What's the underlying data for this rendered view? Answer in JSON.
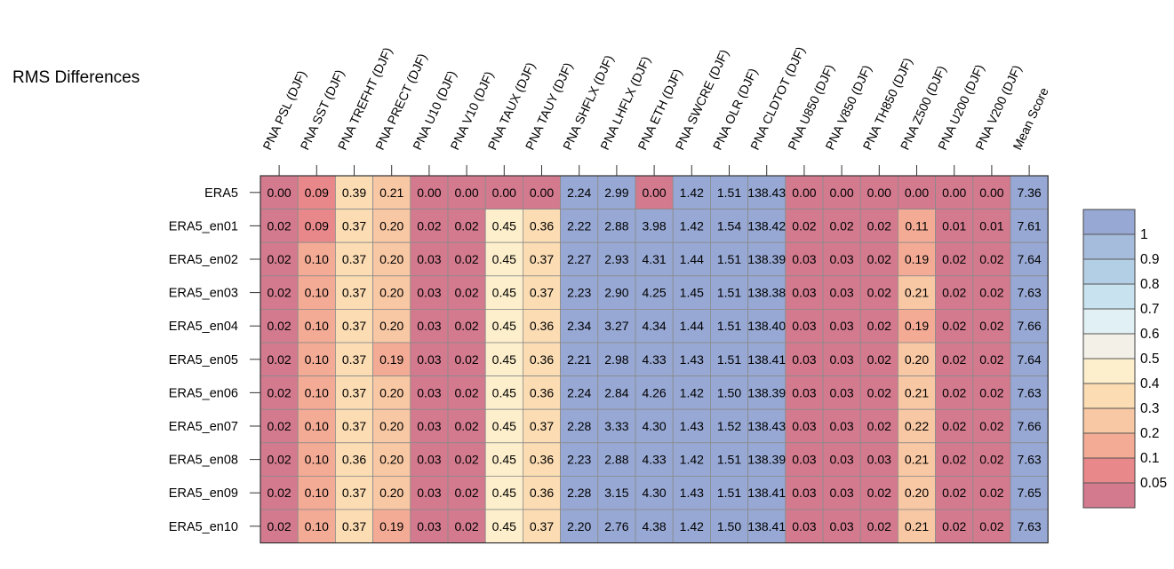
{
  "title": "RMS Differences",
  "chart_data": {
    "type": "heatmap",
    "columns": [
      "PNA PSL (DJF)",
      "PNA SST (DJF)",
      "PNA TREFHT (DJF)",
      "PNA PRECT (DJF)",
      "PNA U10 (DJF)",
      "PNA V10 (DJF)",
      "PNA TAUX (DJF)",
      "PNA TAUY (DJF)",
      "PNA SHFLX (DJF)",
      "PNA LHFLX (DJF)",
      "PNA ETH (DJF)",
      "PNA SWCRE (DJF)",
      "PNA OLR (DJF)",
      "PNA CLDTOT (DJF)",
      "PNA U850 (DJF)",
      "PNA V850 (DJF)",
      "PNA TH850 (DJF)",
      "PNA Z500 (DJF)",
      "PNA U200 (DJF)",
      "PNA V200 (DJF)",
      "Mean Score"
    ],
    "rows": [
      "ERA5",
      "ERA5_en01",
      "ERA5_en02",
      "ERA5_en03",
      "ERA5_en04",
      "ERA5_en05",
      "ERA5_en06",
      "ERA5_en07",
      "ERA5_en08",
      "ERA5_en09",
      "ERA5_en10"
    ],
    "values": [
      [
        "0.00",
        "0.09",
        "0.39",
        "0.21",
        "0.00",
        "0.00",
        "0.00",
        "0.00",
        "2.24",
        "2.99",
        "0.00",
        "1.42",
        "1.51",
        "138.43",
        "0.00",
        "0.00",
        "0.00",
        "0.00",
        "0.00",
        "0.00",
        "7.36"
      ],
      [
        "0.02",
        "0.09",
        "0.37",
        "0.20",
        "0.02",
        "0.02",
        "0.45",
        "0.36",
        "2.22",
        "2.88",
        "3.98",
        "1.42",
        "1.54",
        "138.42",
        "0.02",
        "0.02",
        "0.02",
        "0.11",
        "0.01",
        "0.01",
        "7.61"
      ],
      [
        "0.02",
        "0.10",
        "0.37",
        "0.20",
        "0.03",
        "0.02",
        "0.45",
        "0.37",
        "2.27",
        "2.93",
        "4.31",
        "1.44",
        "1.51",
        "138.39",
        "0.03",
        "0.03",
        "0.02",
        "0.19",
        "0.02",
        "0.02",
        "7.64"
      ],
      [
        "0.02",
        "0.10",
        "0.37",
        "0.20",
        "0.03",
        "0.02",
        "0.45",
        "0.37",
        "2.23",
        "2.90",
        "4.25",
        "1.45",
        "1.51",
        "138.38",
        "0.03",
        "0.03",
        "0.02",
        "0.21",
        "0.02",
        "0.02",
        "7.63"
      ],
      [
        "0.02",
        "0.10",
        "0.37",
        "0.20",
        "0.03",
        "0.02",
        "0.45",
        "0.36",
        "2.34",
        "3.27",
        "4.34",
        "1.44",
        "1.51",
        "138.40",
        "0.03",
        "0.03",
        "0.02",
        "0.19",
        "0.02",
        "0.02",
        "7.66"
      ],
      [
        "0.02",
        "0.10",
        "0.37",
        "0.19",
        "0.03",
        "0.02",
        "0.45",
        "0.36",
        "2.21",
        "2.98",
        "4.33",
        "1.43",
        "1.51",
        "138.41",
        "0.03",
        "0.03",
        "0.02",
        "0.20",
        "0.02",
        "0.02",
        "7.64"
      ],
      [
        "0.02",
        "0.10",
        "0.37",
        "0.20",
        "0.03",
        "0.02",
        "0.45",
        "0.36",
        "2.24",
        "2.84",
        "4.26",
        "1.42",
        "1.50",
        "138.39",
        "0.03",
        "0.03",
        "0.02",
        "0.21",
        "0.02",
        "0.02",
        "7.63"
      ],
      [
        "0.02",
        "0.10",
        "0.37",
        "0.20",
        "0.03",
        "0.02",
        "0.45",
        "0.37",
        "2.28",
        "3.33",
        "4.30",
        "1.43",
        "1.52",
        "138.43",
        "0.03",
        "0.03",
        "0.02",
        "0.22",
        "0.02",
        "0.02",
        "7.66"
      ],
      [
        "0.02",
        "0.10",
        "0.36",
        "0.20",
        "0.03",
        "0.02",
        "0.45",
        "0.36",
        "2.23",
        "2.88",
        "4.33",
        "1.42",
        "1.51",
        "138.39",
        "0.03",
        "0.03",
        "0.03",
        "0.21",
        "0.02",
        "0.02",
        "7.63"
      ],
      [
        "0.02",
        "0.10",
        "0.37",
        "0.20",
        "0.03",
        "0.02",
        "0.45",
        "0.36",
        "2.28",
        "3.15",
        "4.30",
        "1.43",
        "1.51",
        "138.41",
        "0.03",
        "0.03",
        "0.02",
        "0.20",
        "0.02",
        "0.02",
        "7.65"
      ],
      [
        "0.02",
        "0.10",
        "0.37",
        "0.19",
        "0.03",
        "0.02",
        "0.45",
        "0.37",
        "2.20",
        "2.76",
        "4.38",
        "1.42",
        "1.50",
        "138.41",
        "0.03",
        "0.03",
        "0.02",
        "0.21",
        "0.02",
        "0.02",
        "7.63"
      ]
    ],
    "colorbar": {
      "tick_labels": [
        "1",
        "0.9",
        "0.8",
        "0.7",
        "0.6",
        "0.5",
        "0.4",
        "0.3",
        "0.2",
        "0.1",
        "0.05"
      ],
      "bins_bottom_to_top": [
        {
          "upper": "0.05",
          "color": "#d37a8e"
        },
        {
          "upper": "0.1",
          "color": "#e8888a"
        },
        {
          "upper": "0.2",
          "color": "#f3ab95"
        },
        {
          "upper": "0.3",
          "color": "#f8c7a3"
        },
        {
          "upper": "0.4",
          "color": "#fbdcb3"
        },
        {
          "upper": "0.5",
          "color": "#fdefcb"
        },
        {
          "upper": "0.6",
          "color": "#f3f1e7"
        },
        {
          "upper": "0.7",
          "color": "#e1f0f4"
        },
        {
          "upper": "0.8",
          "color": "#c8e3ef"
        },
        {
          "upper": "0.9",
          "color": "#b3cfe6"
        },
        {
          "upper": "1",
          "color": "#a6bcdd"
        },
        {
          "upper": "above",
          "color": "#97a8d4"
        }
      ]
    }
  }
}
